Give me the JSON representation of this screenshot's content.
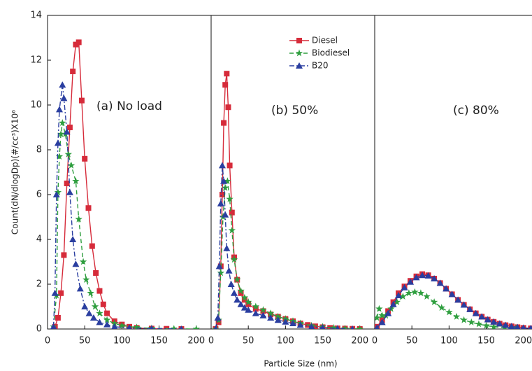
{
  "chart_data": [
    {
      "type": "line",
      "annotation": "(a) No load",
      "ylabel": "Count(dN/dlogDp)(#/cc³)X10⁶",
      "xlim": [
        0,
        220
      ],
      "xticks": [
        0,
        50,
        100,
        150,
        200
      ],
      "ylim": [
        0,
        14
      ],
      "yticks": [
        0,
        2,
        4,
        6,
        8,
        10,
        12,
        14
      ],
      "series": [
        {
          "color": "#d62b3a",
          "marker": "square",
          "dash": "solid",
          "x": [
            10,
            14,
            18,
            22,
            26,
            30,
            34,
            38,
            42,
            46,
            50,
            55,
            60,
            65,
            70,
            75,
            80,
            90,
            100,
            110,
            120,
            140,
            160,
            180
          ],
          "values": [
            0.1,
            0.5,
            1.6,
            3.3,
            6.5,
            9.0,
            11.5,
            12.7,
            12.8,
            10.2,
            7.6,
            5.4,
            3.7,
            2.5,
            1.7,
            1.1,
            0.7,
            0.35,
            0.2,
            0.1,
            0.05,
            0.02,
            0.01,
            0
          ]
        },
        {
          "color": "#2e9e3e",
          "marker": "star",
          "dash": "dashed",
          "x": [
            8,
            12,
            14,
            16,
            18,
            20,
            24,
            28,
            32,
            38,
            42,
            48,
            52,
            58,
            64,
            70,
            80,
            90,
            100,
            120,
            140,
            170,
            200
          ],
          "values": [
            0.1,
            1.5,
            6.1,
            7.7,
            8.7,
            9.2,
            8.7,
            7.8,
            7.3,
            6.6,
            4.9,
            3.0,
            2.2,
            1.6,
            1.0,
            0.7,
            0.4,
            0.25,
            0.15,
            0.07,
            0.03,
            0.01,
            0
          ]
        },
        {
          "color": "#2a3ea0",
          "marker": "triangle",
          "dash": "dashdot",
          "x": [
            8,
            10,
            12,
            14,
            16,
            20,
            22,
            26,
            30,
            34,
            38,
            44,
            50,
            56,
            62,
            70,
            80,
            90,
            110,
            140,
            180
          ],
          "values": [
            0.1,
            1.6,
            6.0,
            8.3,
            9.8,
            10.9,
            10.3,
            8.8,
            6.1,
            4.0,
            2.9,
            1.8,
            1.0,
            0.7,
            0.5,
            0.3,
            0.2,
            0.1,
            0.05,
            0.02,
            0
          ]
        }
      ]
    },
    {
      "type": "line",
      "annotation": "(b) 50%",
      "xlabel": "Particle Size (nm)",
      "legend": "upper left",
      "xlim": [
        0,
        220
      ],
      "xticks": [
        0,
        50,
        100,
        150,
        200
      ],
      "ylim": [
        0,
        14
      ],
      "series": [
        {
          "name": "Diesel",
          "color": "#d62b3a",
          "marker": "square",
          "dash": "solid",
          "x": [
            6,
            10,
            13,
            15,
            17,
            19,
            21,
            23,
            25,
            28,
            31,
            35,
            40,
            45,
            50,
            60,
            70,
            80,
            90,
            100,
            110,
            120,
            130,
            140,
            150,
            160,
            170,
            180,
            190,
            200
          ],
          "values": [
            0,
            0.3,
            2.8,
            6.0,
            9.2,
            10.9,
            11.4,
            9.9,
            7.3,
            5.2,
            3.2,
            2.2,
            1.6,
            1.3,
            1.1,
            0.9,
            0.8,
            0.65,
            0.55,
            0.45,
            0.35,
            0.25,
            0.18,
            0.12,
            0.08,
            0.05,
            0.03,
            0.02,
            0.01,
            0
          ]
        },
        {
          "name": "Biodiesel",
          "color": "#2e9e3e",
          "marker": "star",
          "dash": "dashed",
          "x": [
            6,
            10,
            13,
            16,
            19,
            22,
            25,
            28,
            31,
            35,
            40,
            45,
            50,
            60,
            70,
            80,
            90,
            100,
            110,
            120,
            135,
            150,
            165,
            180,
            200
          ],
          "values": [
            0,
            0.4,
            2.5,
            5.0,
            6.3,
            6.6,
            5.8,
            4.4,
            3.1,
            2.2,
            1.7,
            1.4,
            1.2,
            1.0,
            0.85,
            0.7,
            0.55,
            0.45,
            0.35,
            0.25,
            0.15,
            0.1,
            0.05,
            0.02,
            0
          ]
        },
        {
          "name": "B20",
          "color": "#2a3ea0",
          "marker": "triangle",
          "dash": "dashdot",
          "x": [
            6,
            9,
            11,
            13,
            15,
            17,
            19,
            21,
            24,
            27,
            31,
            35,
            40,
            45,
            50,
            60,
            70,
            80,
            90,
            100,
            110,
            120,
            135,
            150,
            170,
            190
          ],
          "values": [
            0,
            0.5,
            2.8,
            5.6,
            7.3,
            6.6,
            5.1,
            3.6,
            2.6,
            2.0,
            1.6,
            1.3,
            1.1,
            0.95,
            0.85,
            0.7,
            0.6,
            0.5,
            0.4,
            0.32,
            0.25,
            0.18,
            0.1,
            0.06,
            0.02,
            0
          ]
        }
      ]
    },
    {
      "type": "line",
      "annotation": "(c) 80%",
      "xlim": [
        0,
        212
      ],
      "xticks": [
        0,
        50,
        100,
        150,
        200
      ],
      "ylim": [
        0,
        14
      ],
      "series": [
        {
          "color": "#d62b3a",
          "marker": "square",
          "dash": "solid",
          "x": [
            3,
            10,
            18,
            25,
            32,
            40,
            48,
            56,
            64,
            72,
            80,
            88,
            96,
            104,
            112,
            120,
            128,
            136,
            144,
            152,
            160,
            168,
            176,
            184,
            192,
            200,
            210
          ],
          "values": [
            0.1,
            0.4,
            0.8,
            1.2,
            1.6,
            1.9,
            2.15,
            2.35,
            2.45,
            2.4,
            2.25,
            2.05,
            1.8,
            1.55,
            1.3,
            1.08,
            0.88,
            0.7,
            0.55,
            0.42,
            0.32,
            0.24,
            0.17,
            0.12,
            0.08,
            0.05,
            0.03
          ]
        },
        {
          "color": "#2e9e3e",
          "marker": "star",
          "dash": "dashed",
          "x": [
            3,
            6,
            10,
            15,
            22,
            30,
            38,
            46,
            54,
            62,
            70,
            80,
            90,
            100,
            110,
            120,
            130,
            140,
            150,
            160,
            175,
            190
          ],
          "values": [
            0.5,
            0.9,
            0.6,
            0.6,
            0.9,
            1.2,
            1.45,
            1.6,
            1.65,
            1.6,
            1.45,
            1.2,
            0.95,
            0.75,
            0.55,
            0.4,
            0.3,
            0.22,
            0.15,
            0.1,
            0.06,
            0.03
          ]
        },
        {
          "color": "#2a3ea0",
          "marker": "triangle",
          "dash": "dashdot",
          "x": [
            3,
            10,
            18,
            25,
            32,
            40,
            48,
            56,
            64,
            72,
            80,
            88,
            96,
            104,
            112,
            120,
            128,
            136,
            144,
            152,
            160,
            168,
            176,
            184,
            192,
            200,
            210
          ],
          "values": [
            0.05,
            0.3,
            0.7,
            1.1,
            1.5,
            1.85,
            2.1,
            2.3,
            2.4,
            2.38,
            2.25,
            2.05,
            1.8,
            1.55,
            1.3,
            1.08,
            0.88,
            0.7,
            0.55,
            0.42,
            0.32,
            0.24,
            0.17,
            0.12,
            0.08,
            0.05,
            0.03
          ]
        }
      ]
    }
  ]
}
